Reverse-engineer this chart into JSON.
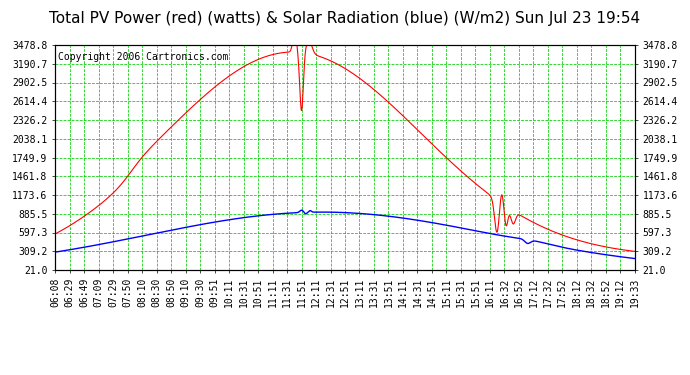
{
  "title": "Total PV Power (red) (watts) & Solar Radiation (blue) (W/m2) Sun Jul 23 19:54",
  "copyright": "Copyright 2006 Cartronics.com",
  "bg_color": "#ffffff",
  "plot_bg_color": "#ffffff",
  "grid_color": "#00cc00",
  "x_tick_labels": [
    "06:08",
    "06:29",
    "06:49",
    "07:09",
    "07:29",
    "07:50",
    "08:10",
    "08:30",
    "08:50",
    "09:10",
    "09:30",
    "09:51",
    "10:11",
    "10:31",
    "10:51",
    "11:11",
    "11:31",
    "11:51",
    "12:11",
    "12:31",
    "12:51",
    "13:11",
    "13:31",
    "13:51",
    "14:11",
    "14:31",
    "14:51",
    "15:11",
    "15:31",
    "15:51",
    "16:11",
    "16:32",
    "16:52",
    "17:12",
    "17:32",
    "17:52",
    "18:12",
    "18:32",
    "18:52",
    "19:12",
    "19:33"
  ],
  "y_tick_labels": [
    "21.0",
    "309.2",
    "597.3",
    "885.5",
    "1173.6",
    "1461.8",
    "1749.9",
    "2038.1",
    "2326.2",
    "2614.4",
    "2902.5",
    "3190.7",
    "3478.8"
  ],
  "y_min": 21.0,
  "y_max": 3478.8,
  "red_line_color": "#ff0000",
  "blue_line_color": "#0000ff",
  "title_fontsize": 11,
  "copyright_fontsize": 7,
  "tick_fontsize": 7
}
